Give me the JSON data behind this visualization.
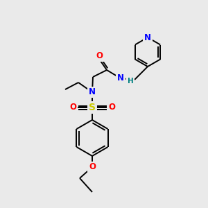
{
  "background_color": "#eaeaea",
  "bond_color": "#000000",
  "atom_colors": {
    "N": "#0000ff",
    "O": "#ff0000",
    "S": "#cccc00",
    "H": "#008080",
    "C": "#000000"
  },
  "figsize": [
    3.0,
    3.0
  ],
  "dpi": 100
}
